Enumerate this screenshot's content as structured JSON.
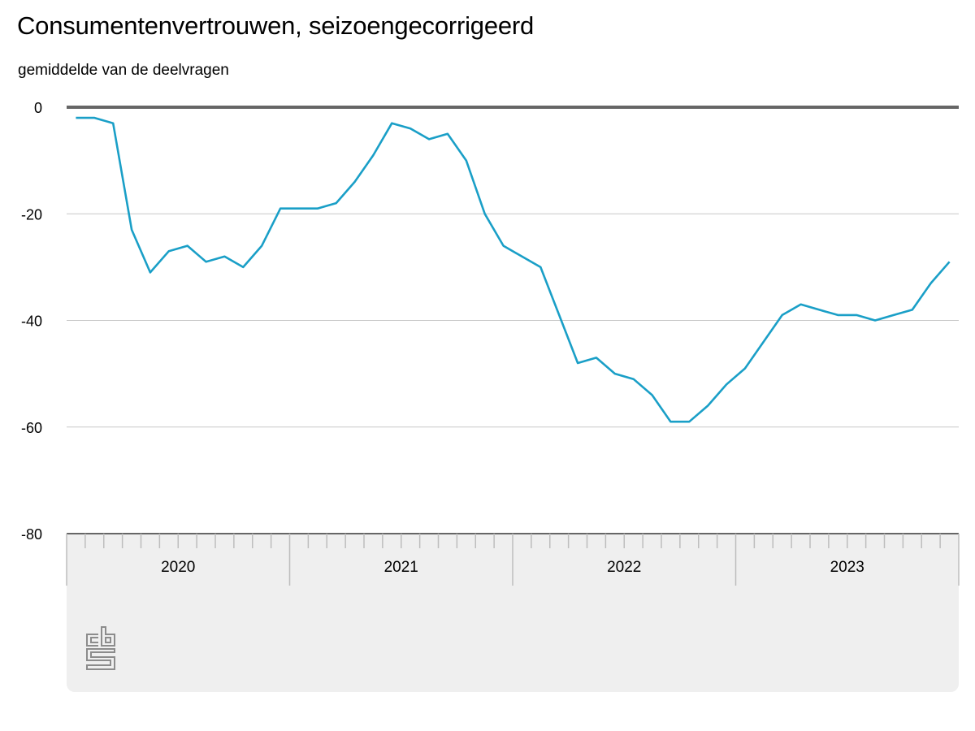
{
  "header": {
    "title": "Consumentenvertrouwen, seizoengecorrigeerd",
    "subtitle": "gemiddelde van de deelvragen"
  },
  "colors": {
    "line": "#1a9fc7",
    "zero_line": "#666666",
    "grid": "#c8c8c8",
    "axis_panel": "#efefef"
  },
  "logo": {
    "name": "cbs-logo"
  },
  "chart_data": {
    "type": "line",
    "title": "Consumentenvertrouwen, seizoengecorrigeerd",
    "subtitle": "gemiddelde van de deelvragen",
    "xlabel": "",
    "ylabel": "gemiddelde van de deelvragen",
    "ylim": [
      -80,
      0
    ],
    "yticks": [
      0,
      -20,
      -40,
      -60,
      -80
    ],
    "ytick_labels": [
      "0",
      "-20",
      "-40",
      "-60",
      "-80"
    ],
    "x_groups": [
      "2020",
      "2021",
      "2022",
      "2023"
    ],
    "grid": true,
    "legend": null,
    "x": [
      "2020-01",
      "2020-02",
      "2020-03",
      "2020-04",
      "2020-05",
      "2020-06",
      "2020-07",
      "2020-08",
      "2020-09",
      "2020-10",
      "2020-11",
      "2020-12",
      "2021-01",
      "2021-02",
      "2021-03",
      "2021-04",
      "2021-05",
      "2021-06",
      "2021-07",
      "2021-08",
      "2021-09",
      "2021-10",
      "2021-11",
      "2021-12",
      "2022-01",
      "2022-02",
      "2022-03",
      "2022-04",
      "2022-05",
      "2022-06",
      "2022-07",
      "2022-08",
      "2022-09",
      "2022-10",
      "2022-11",
      "2022-12",
      "2023-01",
      "2023-02",
      "2023-03",
      "2023-04",
      "2023-05",
      "2023-06",
      "2023-07",
      "2023-08",
      "2023-09",
      "2023-10",
      "2023-11",
      "2023-12"
    ],
    "series": [
      {
        "name": "Consumentenvertrouwen",
        "values": [
          -2,
          -2,
          -3,
          -23,
          -31,
          -27,
          -26,
          -29,
          -28,
          -30,
          -26,
          -19,
          -19,
          -19,
          -18,
          -14,
          -9,
          -3,
          -4,
          -6,
          -5,
          -10,
          -20,
          -26,
          -28,
          -30,
          -39,
          -48,
          -47,
          -50,
          -51,
          -54,
          -59,
          -59,
          -56,
          -52,
          -49,
          -44,
          -39,
          -37,
          -38,
          -39,
          -39,
          -40,
          -39,
          -38,
          -33,
          -29
        ]
      }
    ]
  }
}
